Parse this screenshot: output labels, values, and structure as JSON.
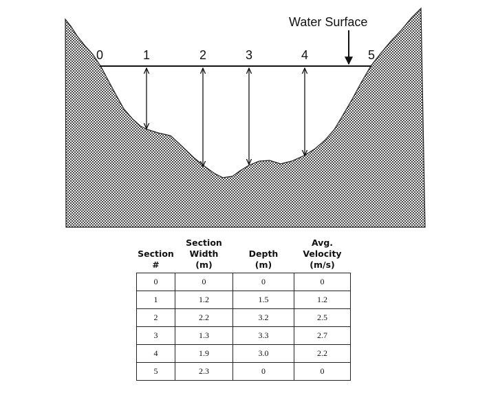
{
  "diagram": {
    "water_surface_label": "Water Surface",
    "section_labels": [
      "0",
      "1",
      "2",
      "3",
      "4",
      "5"
    ]
  },
  "table": {
    "headers": [
      [
        "Section",
        "#"
      ],
      [
        "Section",
        "Width",
        "(m)"
      ],
      [
        "Depth",
        "(m)"
      ],
      [
        "Avg.",
        "Velocity",
        "(m/s)"
      ]
    ],
    "rows": [
      [
        "0",
        "0",
        "0",
        "0"
      ],
      [
        "1",
        "1.2",
        "1.5",
        "1.2"
      ],
      [
        "2",
        "2.2",
        "3.2",
        "2.5"
      ],
      [
        "3",
        "1.3",
        "3.3",
        "2.7"
      ],
      [
        "4",
        "1.9",
        "3.0",
        "2.2"
      ],
      [
        "5",
        "2.3",
        "0",
        "0"
      ]
    ]
  }
}
